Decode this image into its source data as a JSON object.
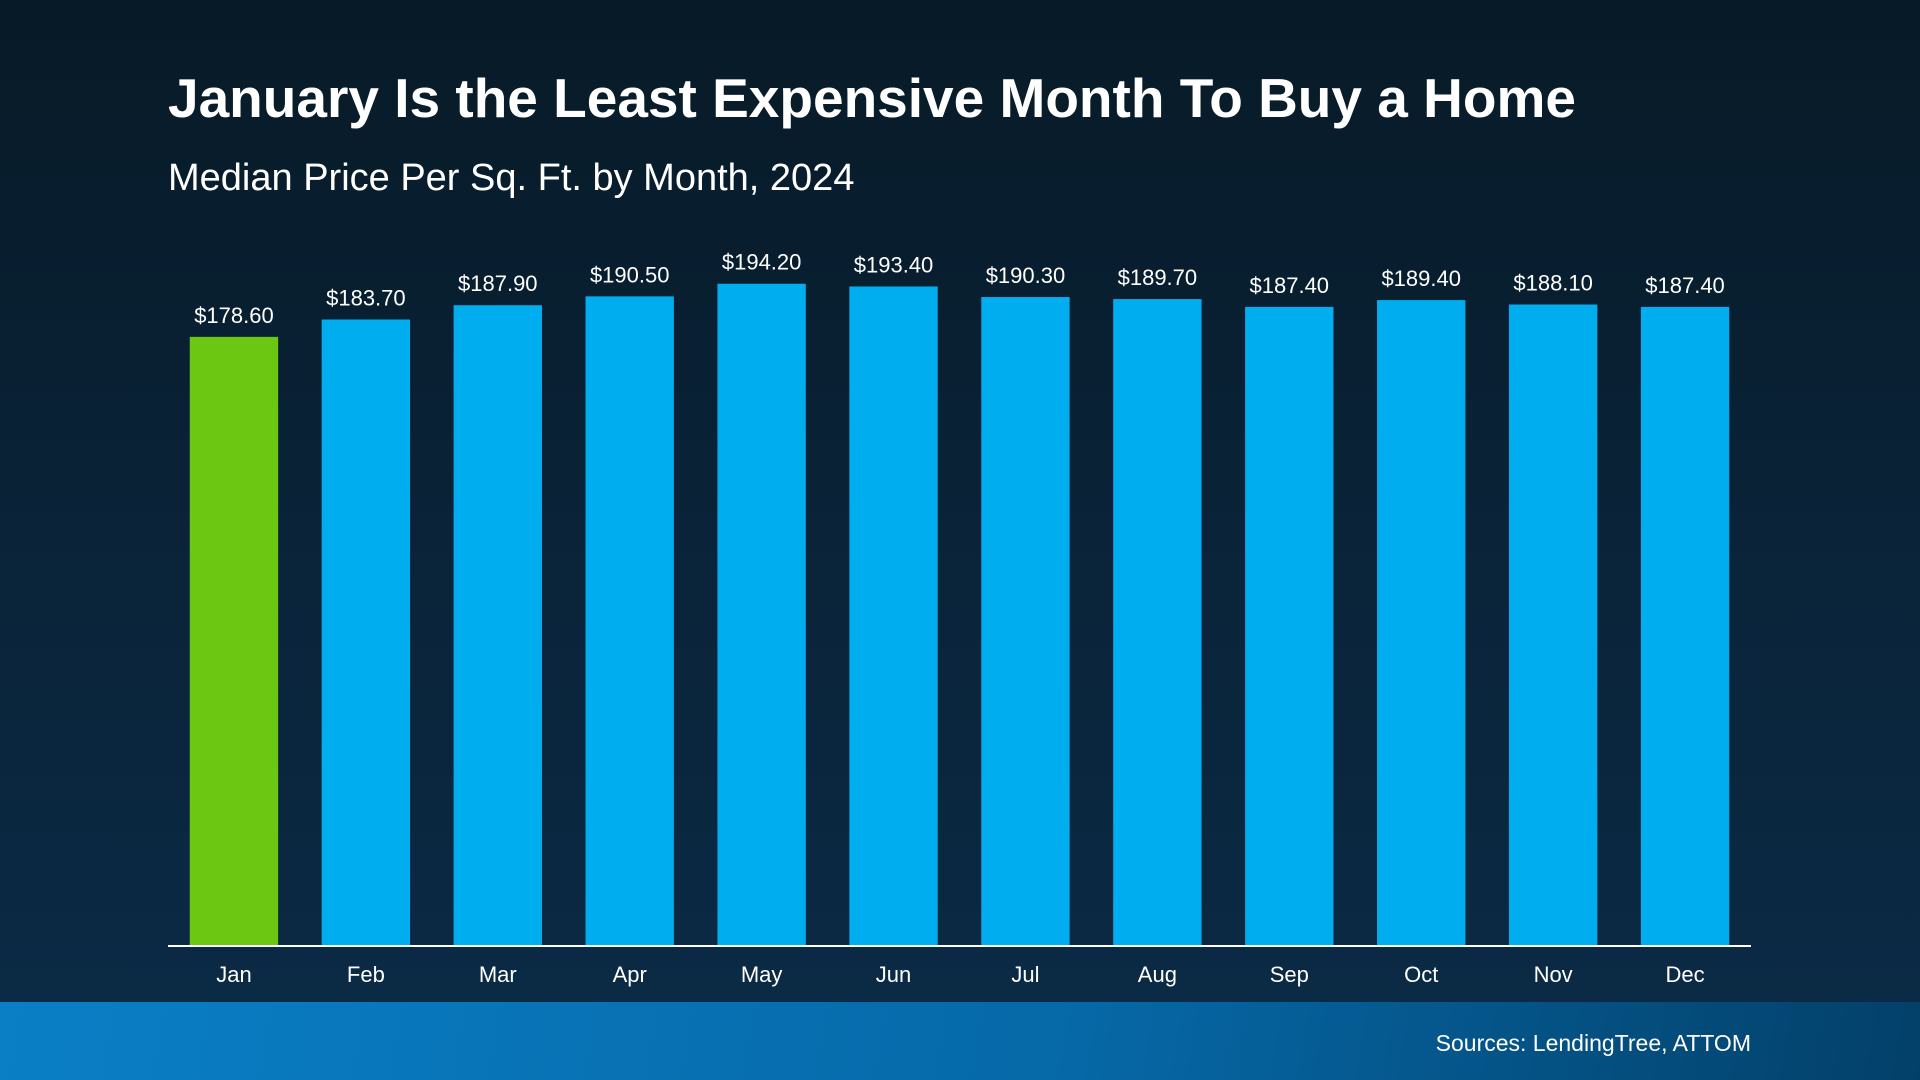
{
  "chart_data": {
    "type": "bar",
    "title": "January Is the Least Expensive Month To Buy a Home",
    "subtitle": "Median Price Per Sq. Ft. by Month, 2024",
    "categories": [
      "Jan",
      "Feb",
      "Mar",
      "Apr",
      "May",
      "Jun",
      "Jul",
      "Aug",
      "Sep",
      "Oct",
      "Nov",
      "Dec"
    ],
    "values": [
      178.6,
      183.7,
      187.9,
      190.5,
      194.2,
      193.4,
      190.3,
      189.7,
      187.4,
      189.4,
      188.1,
      187.4
    ],
    "data_labels": [
      "$178.60",
      "$183.70",
      "$187.90",
      "$190.50",
      "$194.20",
      "$193.40",
      "$190.30",
      "$189.70",
      "$187.40",
      "$189.40",
      "$188.10",
      "$187.40"
    ],
    "xlabel": "",
    "ylabel": "",
    "ylim": [
      0,
      200
    ],
    "grid": false,
    "highlight_category": "Jan",
    "colors": {
      "highlight": "#6cc712",
      "bar": "#00adee",
      "axis": "#ffffff"
    }
  },
  "footer": {
    "source": "Sources: LendingTree, ATTOM"
  }
}
